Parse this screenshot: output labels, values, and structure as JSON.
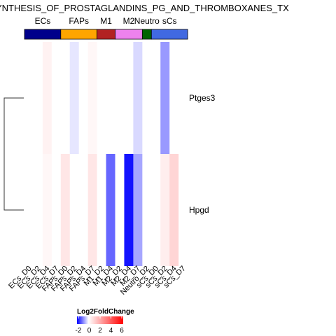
{
  "chart_data": {
    "type": "heatmap",
    "title": "YNTHESIS_OF_PROSTAGLANDINS_PG_AND_THROMBOXANES_TX",
    "groups": [
      {
        "name": "ECs",
        "color": "#00008b",
        "span": 4
      },
      {
        "name": "FAPs",
        "color": "#ffa500",
        "span": 4
      },
      {
        "name": "M1",
        "color": "#b22222",
        "span": 2
      },
      {
        "name": "M2",
        "color": "#ee82ee",
        "span": 3
      },
      {
        "name": "Neutro",
        "color": "#006400",
        "span": 1
      },
      {
        "name": "sCs",
        "color": "#4169e1",
        "span": 4
      }
    ],
    "columns": [
      "ECs_D0",
      "ECs_D2",
      "ECs_D4",
      "ECs_D7",
      "FAPs_D0",
      "FAPs_D2",
      "FAPs_D4",
      "FAPs_D7",
      "M1_D2",
      "M1_D4",
      "M2_D2",
      "M2_D4",
      "M2_D7",
      "Neutro_D2",
      "sCs_D0",
      "sCs_D2",
      "sCs_D4",
      "sCs_D7"
    ],
    "rows": [
      "Ptges3",
      "Hpgd"
    ],
    "values": [
      [
        0.0,
        0.0,
        0.3,
        0.0,
        0.0,
        -0.2,
        0.0,
        0.2,
        0.0,
        0.0,
        0.0,
        0.0,
        -0.3,
        0.0,
        0.0,
        -0.8,
        0.0,
        0.0
      ],
      [
        0.0,
        0.0,
        0.2,
        0.0,
        0.6,
        0.0,
        0.0,
        0.6,
        0.0,
        -1.2,
        0.0,
        -1.85,
        -0.7,
        0.0,
        0.0,
        0.4,
        1.0,
        0.0
      ]
    ],
    "legend": {
      "title": "Log2FoldChange",
      "ticks": [
        -2,
        0,
        2,
        4,
        6
      ],
      "range": [
        -2,
        6
      ]
    },
    "dendrogram": "rows"
  }
}
